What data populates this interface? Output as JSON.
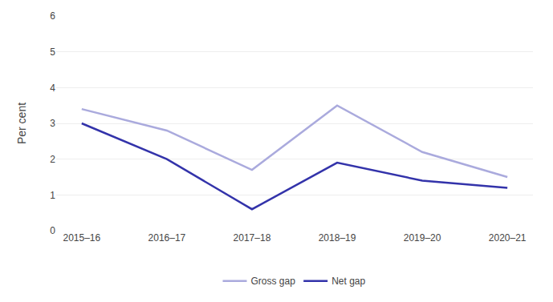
{
  "chart_data": {
    "type": "line",
    "categories": [
      "2015–16",
      "2016–17",
      "2017–18",
      "2018–19",
      "2019–20",
      "2020–21"
    ],
    "series": [
      {
        "name": "Gross gap",
        "color": "#aaaadd",
        "values": [
          3.4,
          2.8,
          1.7,
          3.5,
          2.2,
          1.5
        ]
      },
      {
        "name": "Net gap",
        "color": "#3333aa",
        "values": [
          3.0,
          2.0,
          0.6,
          1.9,
          1.4,
          1.2
        ]
      }
    ],
    "ylabel": "Per cent",
    "ylim": [
      0,
      6
    ],
    "yticks": [
      0,
      1,
      2,
      3,
      4,
      5,
      6
    ],
    "grid": true,
    "legend": "bottom"
  }
}
